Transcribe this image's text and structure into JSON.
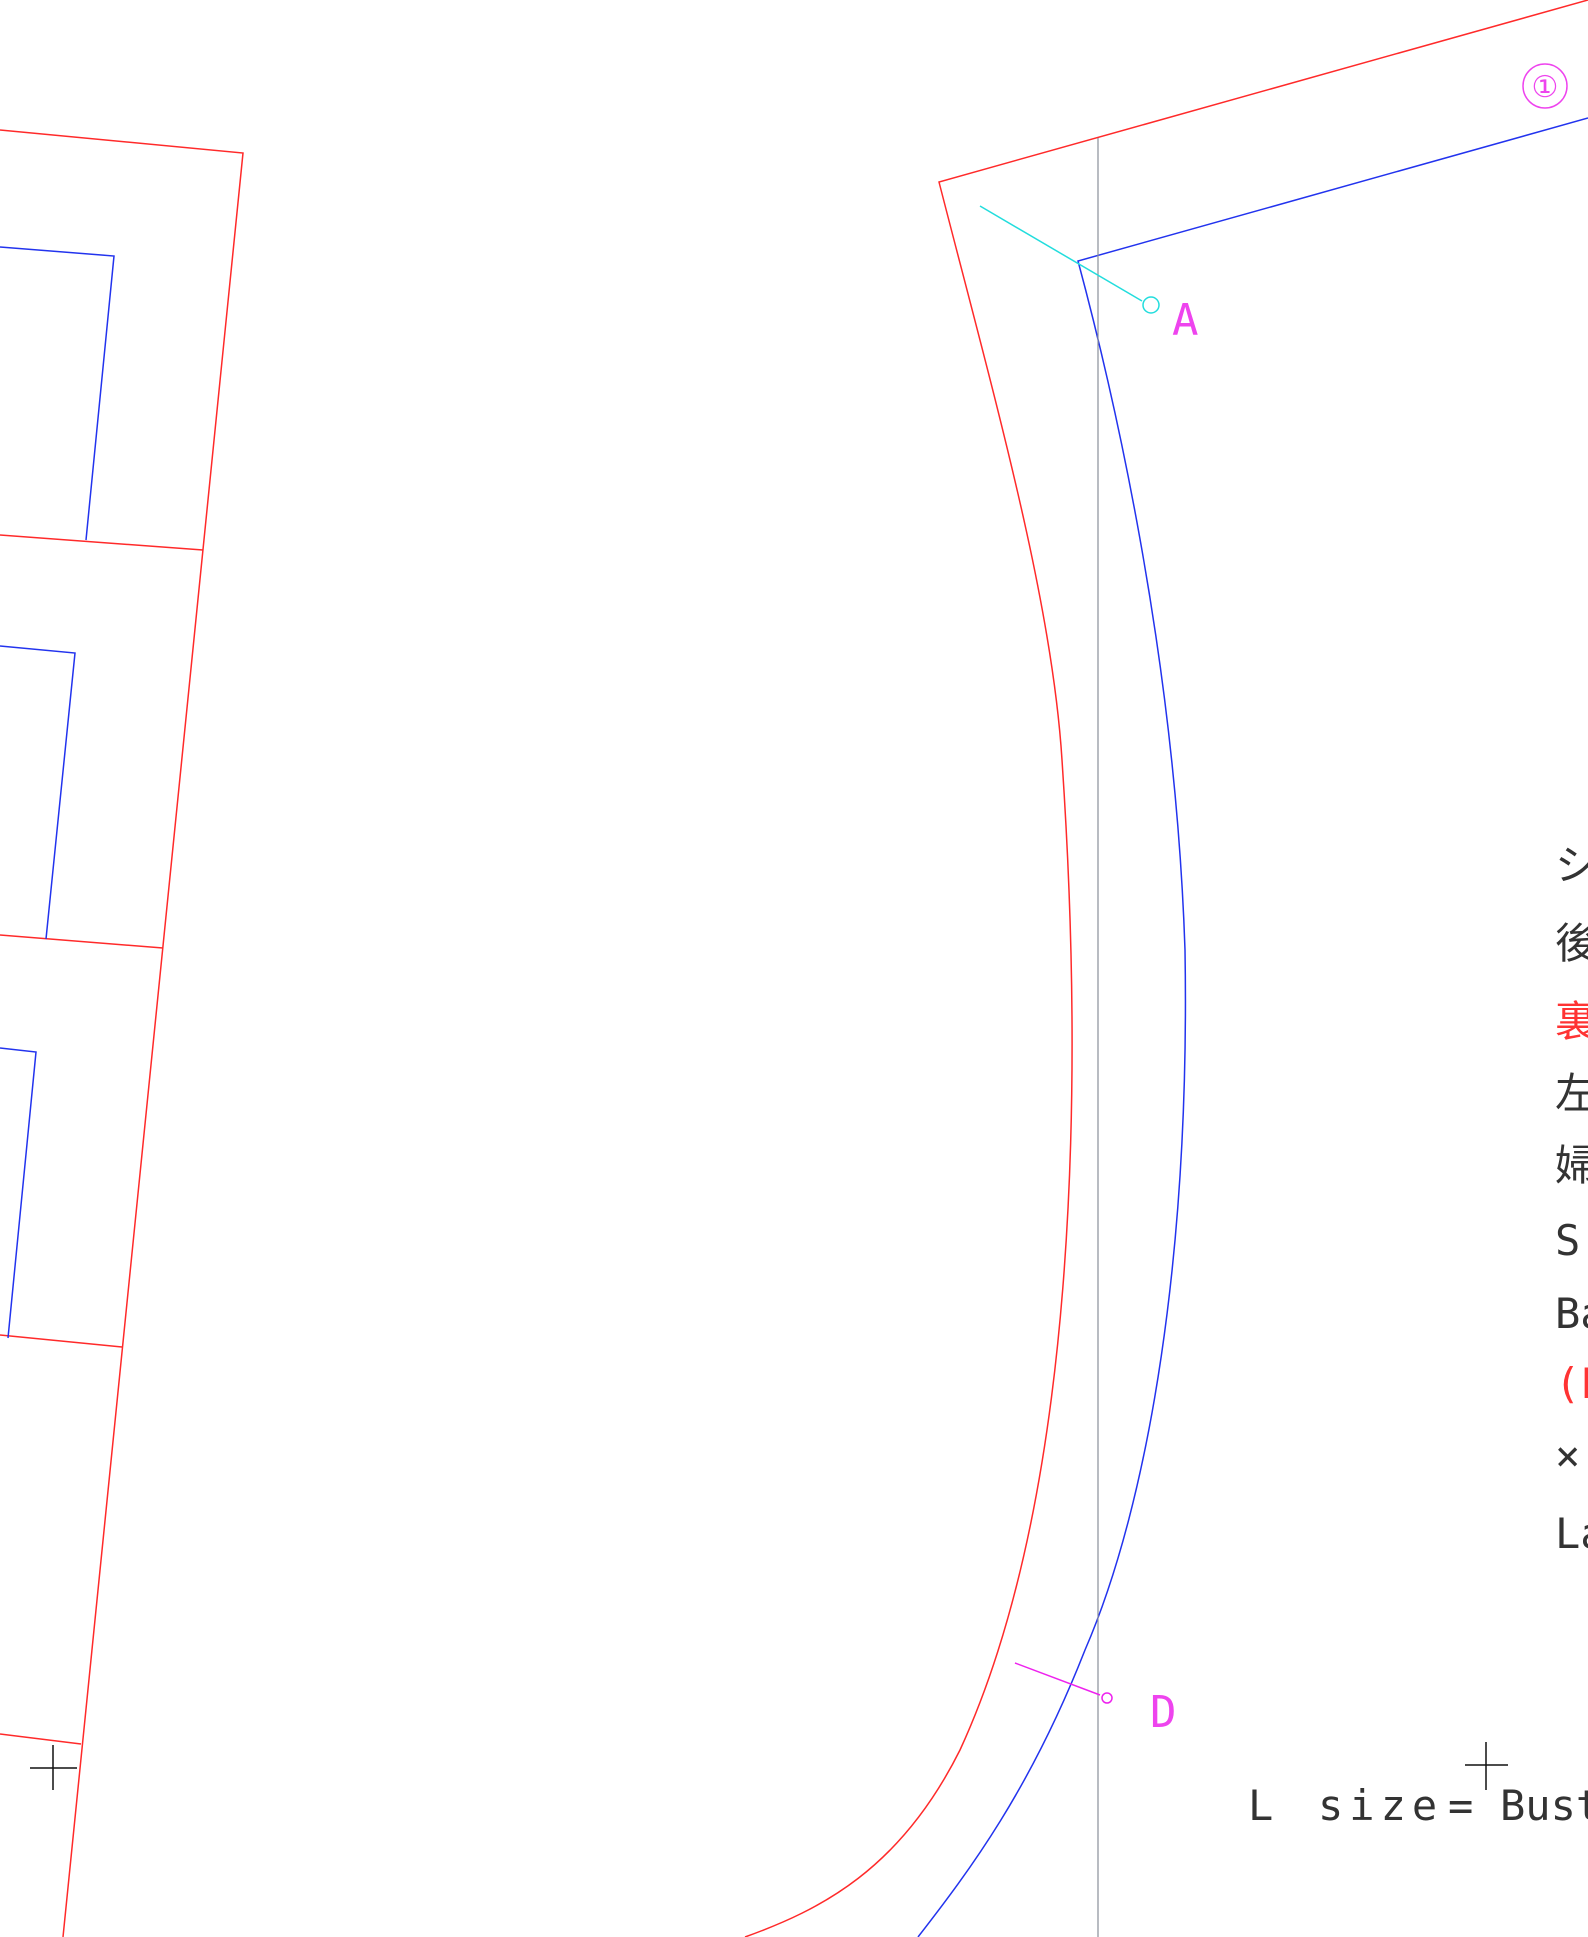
{
  "colors": {
    "seam_allowance": "#ff2a2a",
    "stitch_line": "#2233ee",
    "grain_line": "#8a8f9a",
    "marker_a": "#22dddd",
    "marker_d": "#ee22ee",
    "label_magenta": "#ee44ee",
    "text_gray": "#333333",
    "text_red": "#ff3333",
    "registration": "#111111"
  },
  "markers": {
    "piece_number": "①",
    "point_a": "A",
    "point_d": "D"
  },
  "notes": {
    "line1": "シ",
    "line2": "後",
    "line3": "裏",
    "line4": "左",
    "line5": "婦",
    "line6": "S",
    "line7": "Ba",
    "line8": "(L",
    "line9": "×",
    "line10": "La"
  },
  "size_line": {
    "label": "L",
    "word": "size",
    "equals": "=",
    "measure": "Bust"
  }
}
